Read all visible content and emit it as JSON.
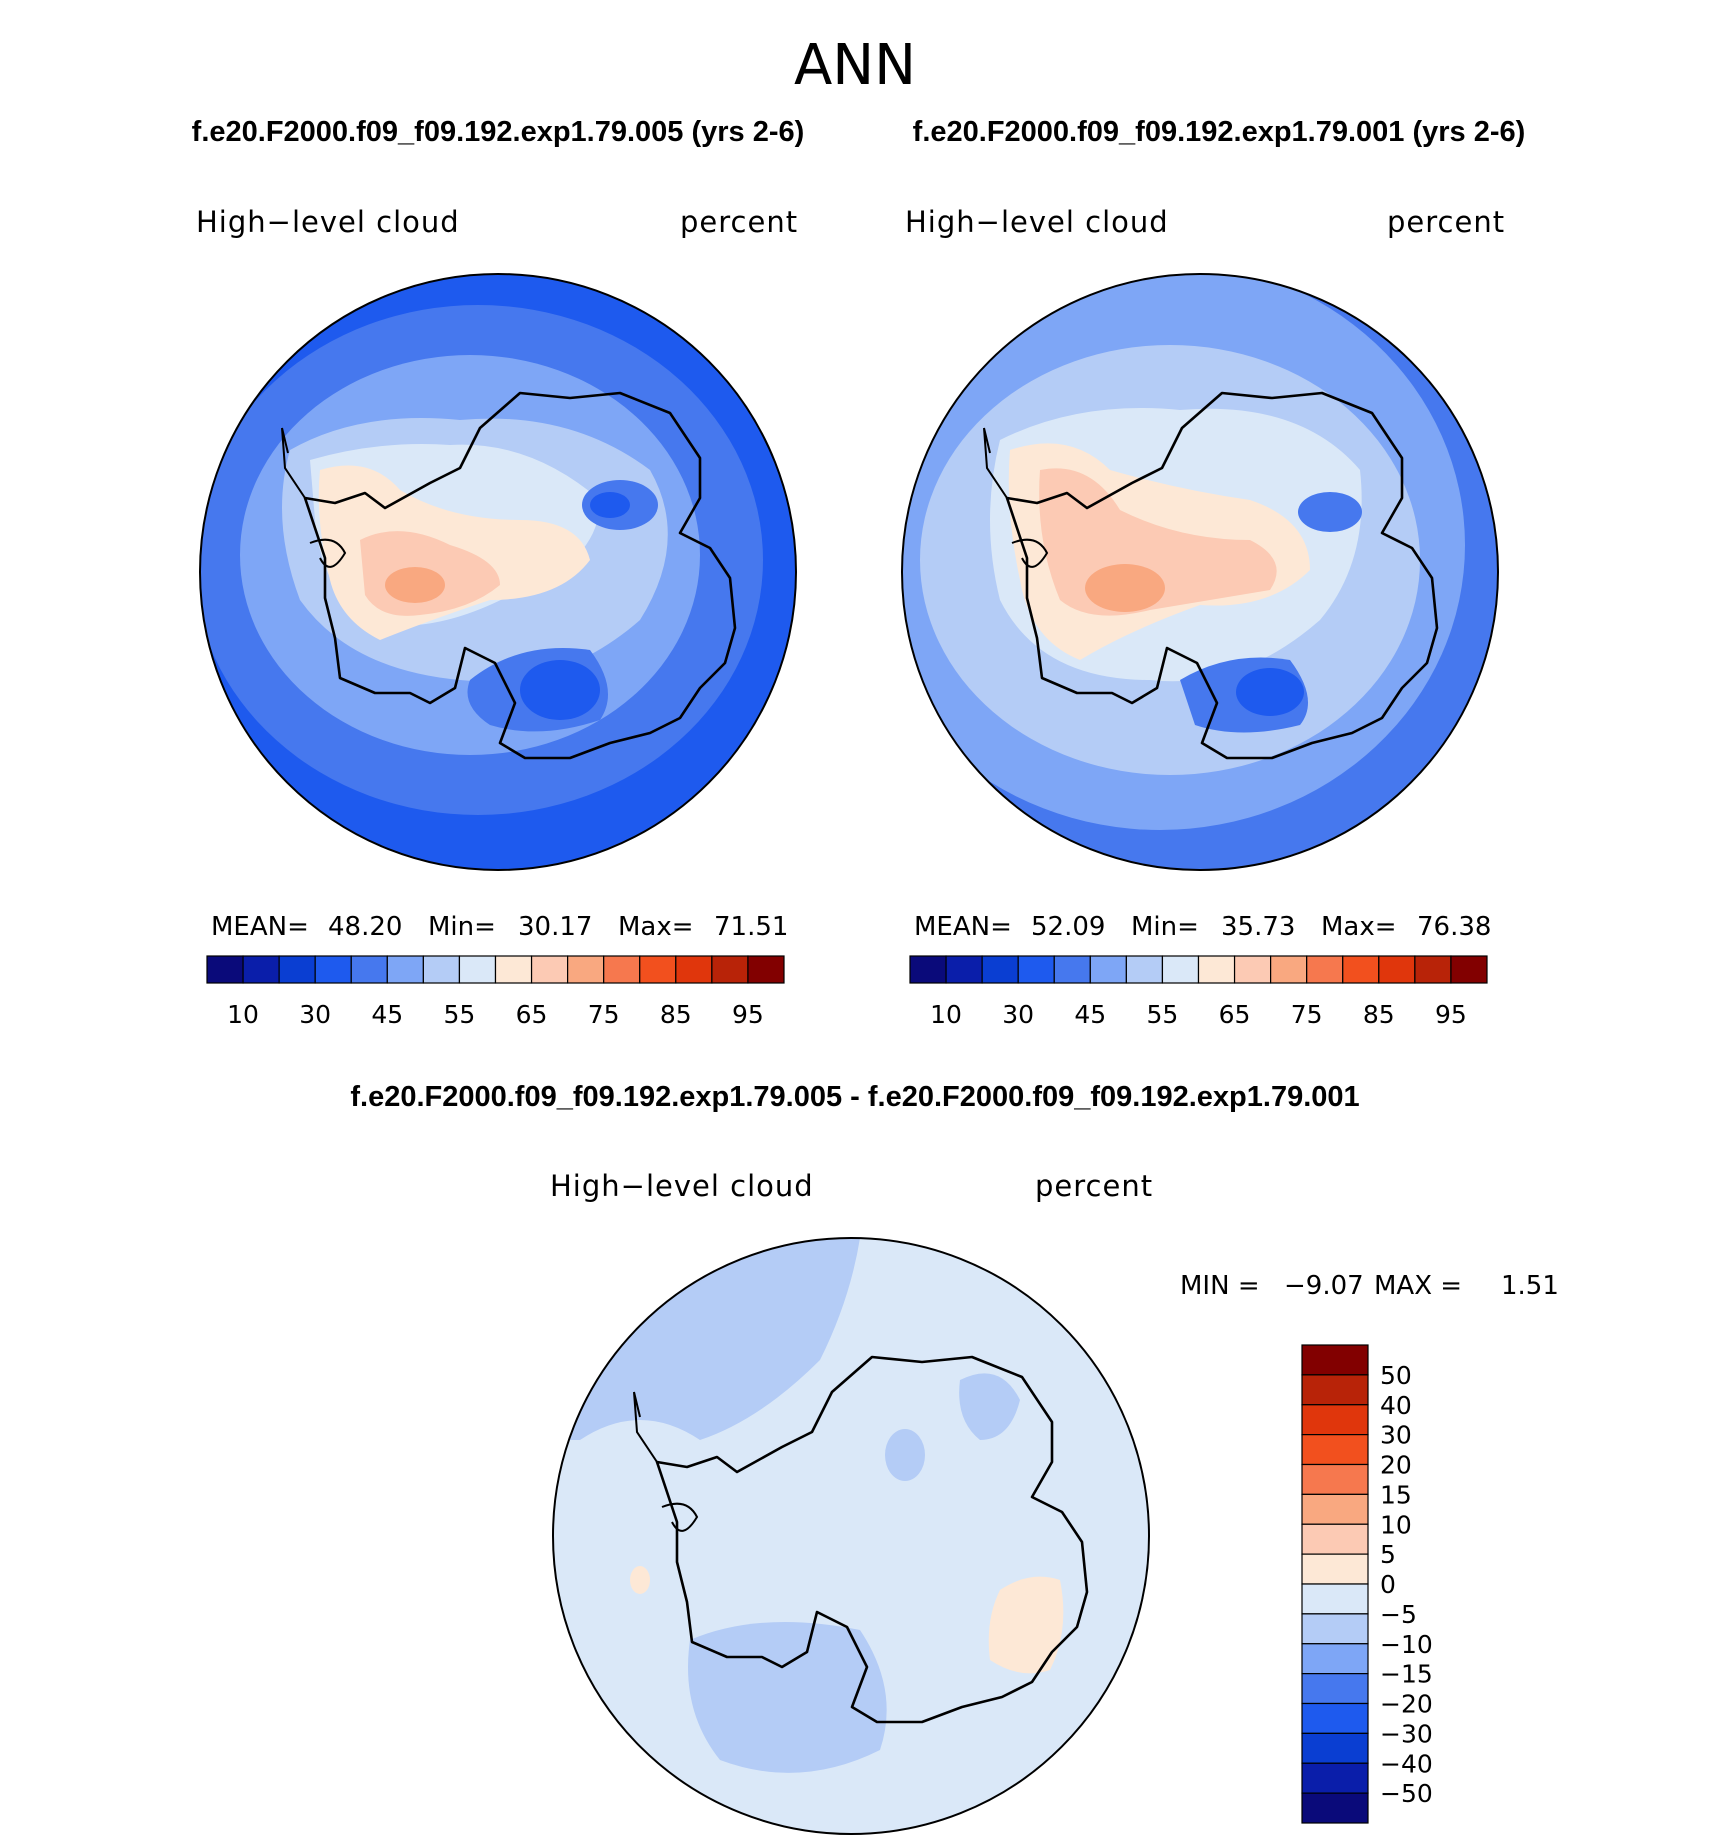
{
  "figure": {
    "season": "ANN",
    "case_titles": [
      "f.e20.F2000.f09_f09.192.exp1.79.005 (yrs 2-6)",
      "f.e20.F2000.f09_f09.192.exp1.79.001 (yrs 2-6)"
    ],
    "diff_title": "f.e20.F2000.f09_f09.192.exp1.79.005 - f.e20.F2000.f09_f09.192.exp1.79.001"
  },
  "panels": [
    {
      "variable": "High−level cloud",
      "units": "percent",
      "stats": {
        "mean_label": "MEAN=",
        "mean": "48.20",
        "min_label": "Min=",
        "min": "30.17",
        "max_label": "Max=",
        "max": "71.51"
      }
    },
    {
      "variable": "High−level cloud",
      "units": "percent",
      "stats": {
        "mean_label": "MEAN=",
        "mean": "52.09",
        "min_label": "Min=",
        "min": "35.73",
        "max_label": "Max=",
        "max": "76.38"
      }
    }
  ],
  "diff_panel": {
    "variable": "High−level cloud",
    "units": "percent",
    "stats": {
      "min_label": "MIN =",
      "min": "−9.07",
      "max_label": "MAX =",
      "max": "1.51"
    }
  },
  "colorbar_main": {
    "colors": [
      "#0a0a7a",
      "#0a1eaa",
      "#0a3ed2",
      "#1e5aee",
      "#4678ee",
      "#7ea6f6",
      "#b4ccf6",
      "#dae8f8",
      "#fde8d6",
      "#fccab4",
      "#f9a880",
      "#f6784e",
      "#f2501e",
      "#e0360c",
      "#b82308",
      "#820000"
    ],
    "tick_labels": [
      "10",
      "30",
      "45",
      "55",
      "65",
      "75",
      "85",
      "95"
    ]
  },
  "colorbar_diff": {
    "colors_top_to_bottom": [
      "#820000",
      "#b82308",
      "#e0360c",
      "#f2501e",
      "#f6784e",
      "#f9a880",
      "#fccab4",
      "#fde8d6",
      "#dae8f8",
      "#b4ccf6",
      "#7ea6f6",
      "#4678ee",
      "#1e5aee",
      "#0a3ed2",
      "#0a1eaa",
      "#0a0a7a"
    ],
    "tick_labels": [
      "50",
      "40",
      "30",
      "20",
      "15",
      "10",
      "5",
      "0",
      "−5",
      "−10",
      "−15",
      "−20",
      "−30",
      "−40",
      "−50"
    ]
  },
  "map_colors": {
    "c_40": "#1e5aee",
    "c_45": "#4678ee",
    "c_50": "#7ea6f6",
    "c_55": "#b4ccf6",
    "c_60": "#dae8f8",
    "c_65": "#fde8d6",
    "c_70": "#fccab4",
    "c_75": "#f9a880",
    "d_0": "#dae8f8",
    "d_m5": "#b4ccf6",
    "d_p5": "#fde8d6"
  }
}
